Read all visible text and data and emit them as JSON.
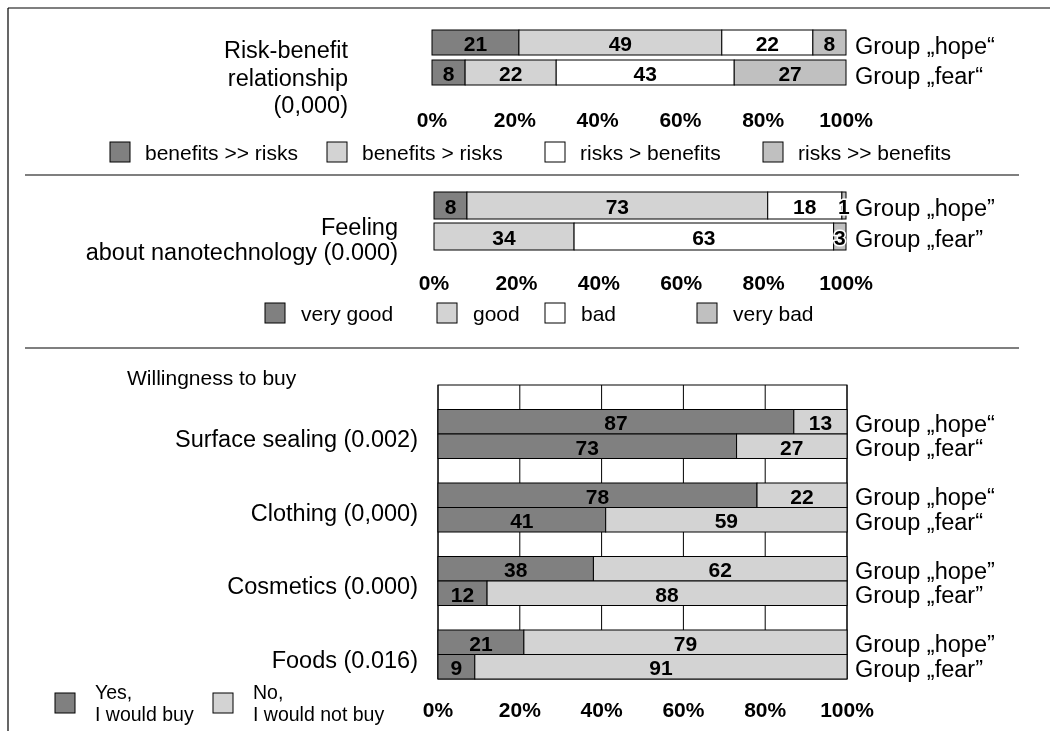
{
  "chart_data": [
    {
      "type": "bar",
      "orientation": "horizontal",
      "stacked": true,
      "title": "Risk-benefit\nrelationship\n(0,000)",
      "categories": [
        "Group „hope“",
        "Group „fear“"
      ],
      "series": [
        {
          "name": "benefits >> risks",
          "color": "#808080",
          "values": [
            21,
            8
          ]
        },
        {
          "name": "benefits > risks",
          "color": "#d3d3d3",
          "values": [
            49,
            22
          ]
        },
        {
          "name": "risks > benefits",
          "color": "#ffffff",
          "values": [
            22,
            43
          ]
        },
        {
          "name": "risks >> benefits",
          "color": "#c0c0c0",
          "values": [
            8,
            27
          ]
        }
      ],
      "xlim": [
        0,
        100
      ],
      "xticks": [
        {
          "value": 0,
          "label": "0%"
        },
        {
          "value": 20,
          "label": "20%"
        },
        {
          "value": 40,
          "label": "40%"
        },
        {
          "value": 60,
          "label": "60%"
        },
        {
          "value": 80,
          "label": "80%"
        },
        {
          "value": 100,
          "label": "100%"
        }
      ],
      "data_labels": true,
      "legend": "bottom"
    },
    {
      "type": "bar",
      "orientation": "horizontal",
      "stacked": true,
      "title": "Feeling\nabout nanotechnology (0.000)",
      "categories": [
        "Group „hope”",
        "Group „fear”"
      ],
      "series": [
        {
          "name": "very good",
          "color": "#808080",
          "values": [
            8,
            null
          ]
        },
        {
          "name": "good",
          "color": "#d3d3d3",
          "values": [
            73,
            34
          ]
        },
        {
          "name": "bad",
          "color": "#ffffff",
          "values": [
            18,
            63
          ]
        },
        {
          "name": "very bad",
          "color": "#c0c0c0",
          "values": [
            1,
            3
          ]
        }
      ],
      "xlim": [
        0,
        100
      ],
      "xticks": [
        {
          "value": 0,
          "label": "0%"
        },
        {
          "value": 20,
          "label": "20%"
        },
        {
          "value": 40,
          "label": "40%"
        },
        {
          "value": 60,
          "label": "60%"
        },
        {
          "value": 80,
          "label": "80%"
        },
        {
          "value": 100,
          "label": "100%"
        }
      ],
      "data_labels": true,
      "legend": "bottom"
    },
    {
      "type": "bar",
      "orientation": "horizontal",
      "stacked": true,
      "ylabel": "Willingness to buy",
      "annotations": [
        "Surface sealing (0.002)",
        "Clothing (0,000)",
        "Cosmetics (0.000)",
        "Foods (0.016)"
      ],
      "categories": [
        "Group „hope“",
        "Group „fear“",
        "Group „hope“",
        "Group „fear“",
        "Group „hope”",
        "Group „fear”",
        "Group „hope”",
        "Group „fear”"
      ],
      "series": [
        {
          "name": "Yes,\nI would buy",
          "color": "#808080",
          "values": [
            87,
            73,
            78,
            41,
            38,
            12,
            21,
            9
          ]
        },
        {
          "name": "No,\nI would not buy",
          "color": "#d3d3d3",
          "values": [
            13,
            27,
            22,
            59,
            62,
            88,
            79,
            91
          ]
        }
      ],
      "xlim": [
        0,
        100
      ],
      "xticks": [
        {
          "value": 0,
          "label": "0%"
        },
        {
          "value": 20,
          "label": "20%"
        },
        {
          "value": 40,
          "label": "40%"
        },
        {
          "value": 60,
          "label": "60%"
        },
        {
          "value": 80,
          "label": "80%"
        },
        {
          "value": 100,
          "label": "100%"
        }
      ],
      "data_labels": true,
      "grid": "x",
      "legend": "bottom left"
    }
  ]
}
